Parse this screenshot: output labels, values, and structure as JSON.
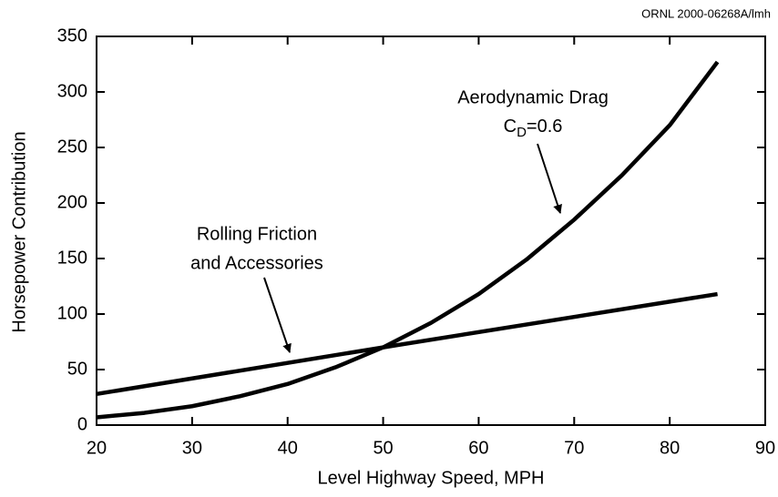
{
  "chart_data": {
    "type": "line",
    "credit": "ORNL 2000-06268A/lmh",
    "x_label": "Level Highway Speed, MPH",
    "y_label": "Horsepower Contribution",
    "series": [
      {
        "color": "#000000",
        "x": [
          20,
          25,
          30,
          35,
          40,
          45,
          50,
          55,
          60,
          65,
          70,
          75,
          80,
          85
        ],
        "values": [
          7,
          11,
          17,
          26,
          37,
          52,
          70,
          92,
          118,
          149,
          185,
          225,
          270,
          327
        ]
      },
      {
        "color": "#000000",
        "x": [
          20,
          50,
          85
        ],
        "values": [
          28,
          70,
          118
        ]
      }
    ],
    "annotations": [
      {
        "text": "Aerodynamic Drag"
      },
      {
        "text": "C",
        "subscript": "D",
        "suffix": "=0.6"
      },
      {
        "text": "Rolling Friction"
      },
      {
        "text": "and Accessories"
      }
    ],
    "xlim": [
      20,
      90
    ],
    "xticks": [
      20,
      30,
      40,
      50,
      60,
      70,
      80,
      90
    ],
    "ylim": [
      0,
      350
    ],
    "yticks": [
      0,
      50,
      100,
      150,
      200,
      250,
      300,
      350
    ],
    "grid": false
  }
}
